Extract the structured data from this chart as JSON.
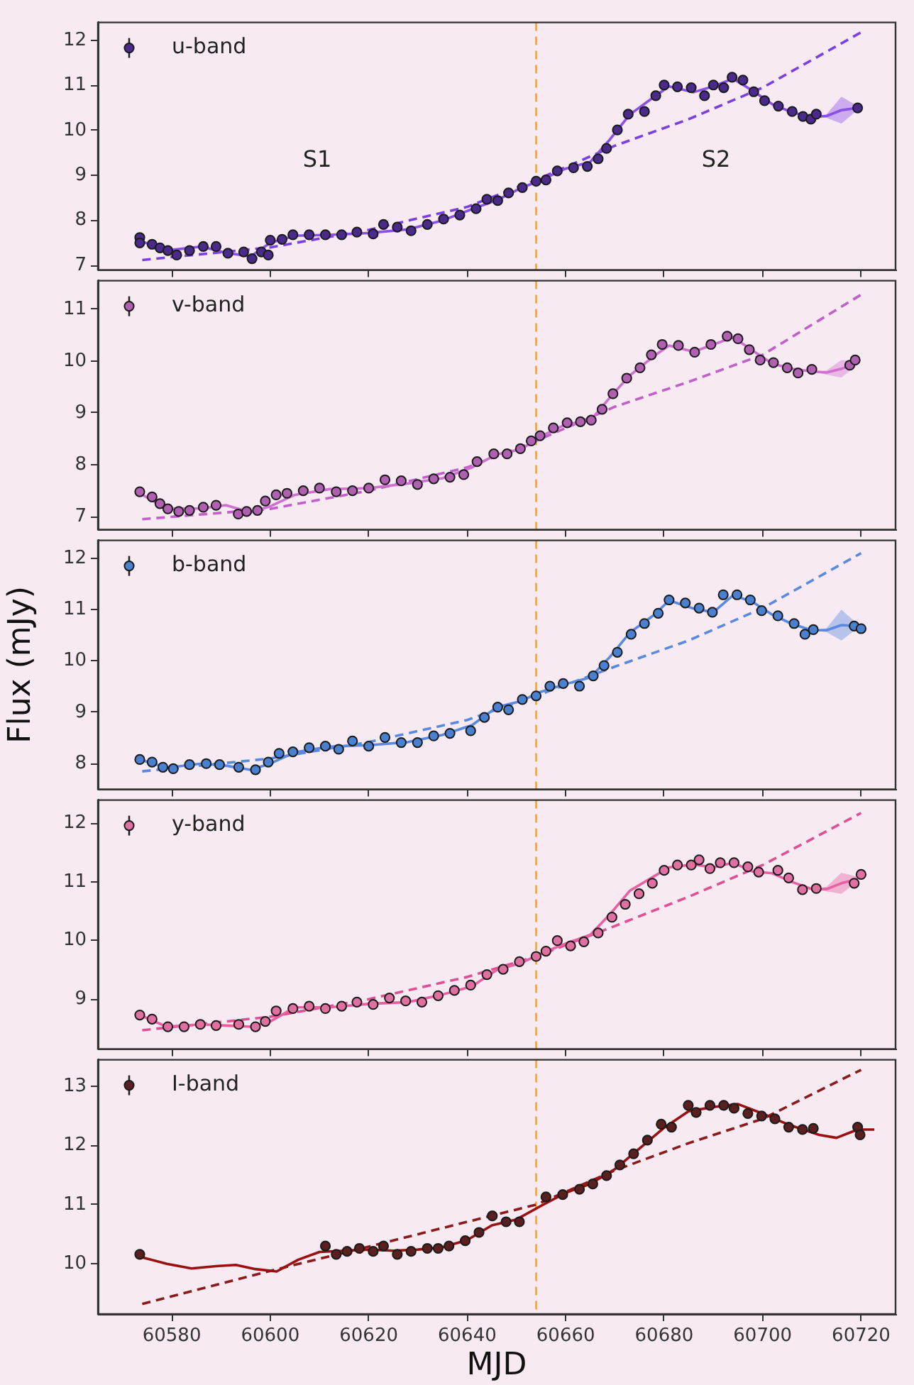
{
  "chart_data": [
    {
      "type": "scatter",
      "xlim": [
        60565,
        60727
      ],
      "xticks": [
        60580,
        60600,
        60620,
        60640,
        60660,
        60680,
        60700,
        60720
      ],
      "ylim": [
        6.9,
        12.4
      ],
      "yticks": [
        7,
        8,
        9,
        10,
        11,
        12
      ],
      "tick_labels": "y",
      "legend": "top left",
      "grid": false,
      "ref_lines": [
        {
          "axis": "x",
          "value": 60654,
          "color": "#f0a020",
          "line_style": "dashed"
        }
      ],
      "annotations": [
        "S1",
        "S2"
      ],
      "series": [
        {
          "name": "u-band",
          "marker": "circle",
          "color": "#4a2a8a",
          "x": [
            60573.5,
            60573.5,
            60576,
            60577.6,
            60579.2,
            60581,
            60583.6,
            60586.4,
            60589,
            60591.4,
            60594.6,
            60596.3,
            60598.2,
            60599.6,
            60600,
            60602.4,
            60604.6,
            60607.9,
            60611.2,
            60614.5,
            60617.6,
            60620.9,
            60623,
            60625.8,
            60628.6,
            60631.9,
            60635.2,
            60638.5,
            60641.8,
            60644,
            60646.2,
            60648.4,
            60651.2,
            60654,
            60656,
            60658.3,
            60661.6,
            60664.4,
            60666.6,
            60668.3,
            60670.5,
            60672.7,
            60676,
            60678.3,
            60680,
            60682.7,
            60685.5,
            60688.2,
            60690,
            60692.1,
            60693.8,
            60696,
            60698.2,
            60700.4,
            60703.2,
            60706,
            60708.2,
            60709.8,
            60710.9,
            60719.3
          ],
          "values": [
            7.62,
            7.5,
            7.47,
            7.39,
            7.33,
            7.23,
            7.33,
            7.42,
            7.42,
            7.27,
            7.3,
            7.15,
            7.3,
            7.23,
            7.56,
            7.58,
            7.68,
            7.68,
            7.68,
            7.68,
            7.74,
            7.7,
            7.91,
            7.85,
            7.77,
            7.91,
            8.03,
            8.12,
            8.26,
            8.47,
            8.44,
            8.61,
            8.73,
            8.87,
            8.9,
            9.1,
            9.17,
            9.2,
            9.37,
            9.6,
            10.01,
            10.36,
            10.42,
            10.77,
            11.01,
            10.97,
            10.95,
            10.77,
            11.01,
            10.95,
            11.18,
            11.12,
            10.86,
            10.66,
            10.54,
            10.42,
            10.31,
            10.25,
            10.36,
            10.5
          ]
        },
        {
          "type": "line",
          "color": "#8a50e8",
          "x": [
            60573.5,
            60579,
            60586,
            60591,
            60596,
            60600,
            60605,
            60612,
            60620,
            60628,
            60635,
            60641,
            60646,
            60651,
            60655,
            60660,
            60665,
            60669,
            60673,
            60678,
            60681,
            60686,
            60690,
            60694,
            60698,
            60702,
            60706,
            60710,
            60713,
            60716,
            60719.3
          ],
          "values": [
            7.55,
            7.33,
            7.42,
            7.28,
            7.2,
            7.5,
            7.66,
            7.68,
            7.72,
            7.8,
            8.0,
            8.25,
            8.45,
            8.72,
            8.9,
            9.15,
            9.3,
            9.8,
            10.35,
            10.75,
            10.98,
            10.85,
            10.98,
            11.15,
            10.88,
            10.58,
            10.4,
            10.3,
            10.32,
            10.45,
            10.5
          ],
          "lower": [
            7.55,
            7.33,
            7.42,
            7.28,
            7.2,
            7.5,
            7.66,
            7.68,
            7.72,
            7.8,
            8.0,
            8.25,
            8.45,
            8.72,
            8.9,
            9.15,
            9.3,
            9.8,
            10.35,
            10.75,
            10.98,
            10.85,
            10.98,
            11.15,
            10.88,
            10.58,
            10.4,
            10.3,
            10.28,
            10.15,
            10.46
          ],
          "upper": [
            7.55,
            7.33,
            7.42,
            7.28,
            7.2,
            7.5,
            7.66,
            7.68,
            7.72,
            7.8,
            8.0,
            8.25,
            8.45,
            8.72,
            8.9,
            9.15,
            9.3,
            9.8,
            10.35,
            10.75,
            10.98,
            10.85,
            10.98,
            11.15,
            10.88,
            10.58,
            10.4,
            10.3,
            10.36,
            10.75,
            10.54
          ]
        },
        {
          "type": "line",
          "color": "#7a40e0",
          "line_style": "dashed",
          "x": [
            60574,
            60600,
            60620,
            60640,
            60654,
            60670,
            60685,
            60700,
            60720
          ],
          "values": [
            7.12,
            7.4,
            7.79,
            8.3,
            8.9,
            9.66,
            10.25,
            10.95,
            12.18
          ]
        }
      ]
    },
    {
      "type": "scatter",
      "xlim": [
        60565,
        60727
      ],
      "xticks": [
        60580,
        60600,
        60620,
        60640,
        60660,
        60680,
        60700,
        60720
      ],
      "ylim": [
        6.75,
        11.55
      ],
      "yticks": [
        7,
        8,
        9,
        10,
        11
      ],
      "tick_labels": "y",
      "legend": "top left",
      "grid": false,
      "ref_lines": [
        {
          "axis": "x",
          "value": 60654,
          "color": "#f0a020",
          "line_style": "dashed"
        }
      ],
      "series": [
        {
          "name": "v-band",
          "marker": "circle",
          "color": "#b060b0",
          "x": [
            60573.5,
            60576,
            60577.6,
            60579.2,
            60581.4,
            60583.6,
            60586.4,
            60589,
            60593.5,
            60595.2,
            60597.4,
            60599,
            60601.2,
            60603.4,
            60606.7,
            60610,
            60613.4,
            60616.7,
            60620,
            60623.3,
            60626.6,
            60629.9,
            60633.2,
            60636.5,
            60639.3,
            60642,
            60645.4,
            60648.1,
            60650.8,
            60653,
            60654.8,
            60657.5,
            60660.3,
            60663,
            60665.2,
            60667.4,
            60669.6,
            60672.4,
            60675.1,
            60677.4,
            60679.6,
            60682.9,
            60686.2,
            60689.5,
            60692.8,
            60695,
            60697.3,
            60699.5,
            60702.2,
            60705,
            60707.2,
            60710,
            60717.7,
            60718.8
          ],
          "values": [
            7.48,
            7.38,
            7.25,
            7.15,
            7.1,
            7.12,
            7.18,
            7.22,
            7.05,
            7.1,
            7.12,
            7.3,
            7.42,
            7.45,
            7.5,
            7.55,
            7.48,
            7.5,
            7.55,
            7.71,
            7.69,
            7.62,
            7.73,
            7.76,
            7.81,
            8.06,
            8.21,
            8.21,
            8.31,
            8.46,
            8.56,
            8.71,
            8.81,
            8.83,
            8.86,
            9.07,
            9.37,
            9.67,
            9.87,
            10.12,
            10.32,
            10.3,
            10.17,
            10.32,
            10.48,
            10.43,
            10.22,
            10.02,
            9.97,
            9.87,
            9.77,
            9.84,
            9.92,
            10.02
          ]
        },
        {
          "type": "line",
          "color": "#d070d0",
          "x": [
            60573.5,
            60579,
            60586,
            60591,
            60596,
            60600,
            60605,
            60612,
            60620,
            60628,
            60635,
            60641,
            60646,
            60651,
            60655,
            60660,
            60665,
            60669,
            60673,
            60678,
            60681,
            60686,
            60690,
            60694,
            60698,
            60702,
            60706,
            60710,
            60713,
            60716,
            60719.3
          ],
          "values": [
            7.45,
            7.15,
            7.16,
            7.22,
            7.08,
            7.2,
            7.42,
            7.53,
            7.55,
            7.64,
            7.74,
            7.95,
            8.2,
            8.3,
            8.55,
            8.78,
            8.85,
            9.3,
            9.72,
            10.1,
            10.3,
            10.18,
            10.32,
            10.46,
            10.2,
            9.95,
            9.85,
            9.8,
            9.78,
            9.85,
            9.97
          ],
          "lower": [
            7.45,
            7.15,
            7.16,
            7.22,
            7.08,
            7.2,
            7.42,
            7.53,
            7.55,
            7.64,
            7.74,
            7.95,
            8.2,
            8.3,
            8.55,
            8.78,
            8.85,
            9.3,
            9.72,
            10.1,
            10.3,
            10.18,
            10.32,
            10.46,
            10.2,
            9.95,
            9.85,
            9.8,
            9.74,
            9.68,
            9.93
          ],
          "upper": [
            7.45,
            7.15,
            7.16,
            7.22,
            7.08,
            7.2,
            7.42,
            7.53,
            7.55,
            7.64,
            7.74,
            7.95,
            8.2,
            8.3,
            8.55,
            8.78,
            8.85,
            9.3,
            9.72,
            10.1,
            10.3,
            10.18,
            10.32,
            10.46,
            10.2,
            9.95,
            9.85,
            9.8,
            9.82,
            10.02,
            10.01
          ]
        },
        {
          "type": "line",
          "color": "#c060c8",
          "line_style": "dashed",
          "x": [
            60574,
            60600,
            60620,
            60640,
            60654,
            60670,
            60685,
            60700,
            60720
          ],
          "values": [
            6.95,
            7.15,
            7.5,
            7.95,
            8.46,
            9.12,
            9.6,
            10.12,
            11.28
          ]
        }
      ]
    },
    {
      "type": "scatter",
      "xlim": [
        60565,
        60727
      ],
      "xticks": [
        60580,
        60600,
        60620,
        60640,
        60660,
        60680,
        60700,
        60720
      ],
      "ylim": [
        7.5,
        12.35
      ],
      "yticks": [
        8,
        9,
        10,
        11,
        12
      ],
      "tick_labels": "y",
      "legend": "top left",
      "grid": false,
      "ylabel": "Flux (mJy)",
      "ref_lines": [
        {
          "axis": "x",
          "value": 60654,
          "color": "#f0a020",
          "line_style": "dashed"
        }
      ],
      "series": [
        {
          "name": "b-band",
          "marker": "circle",
          "color": "#4a80d0",
          "x": [
            60573.5,
            60576,
            60578.2,
            60580.3,
            60583.6,
            60587,
            60589.7,
            60593.6,
            60597,
            60599.6,
            60601.8,
            60604.6,
            60607.9,
            60611.2,
            60613.9,
            60616.7,
            60620,
            60623.3,
            60626.6,
            60629.9,
            60633.2,
            60636.5,
            60640.7,
            60643.5,
            60646.2,
            60648.4,
            60651.2,
            60654,
            60656.8,
            60659.5,
            60662.8,
            60665.6,
            60667.8,
            60670.5,
            60673.3,
            60676,
            60678.8,
            60681,
            60684.3,
            60687.1,
            60689.8,
            60692,
            60694.8,
            60697.5,
            60699.8,
            60703.1,
            60706.4,
            60708.6,
            60710.3,
            60718.6,
            60720
          ],
          "values": [
            8.08,
            8.03,
            7.93,
            7.9,
            7.98,
            8.0,
            7.98,
            7.93,
            7.88,
            8.03,
            8.2,
            8.23,
            8.31,
            8.34,
            8.28,
            8.44,
            8.34,
            8.51,
            8.41,
            8.41,
            8.54,
            8.59,
            8.64,
            8.9,
            9.1,
            9.05,
            9.25,
            9.32,
            9.51,
            9.56,
            9.51,
            9.71,
            9.91,
            10.17,
            10.52,
            10.73,
            10.93,
            11.19,
            11.13,
            11.03,
            10.95,
            11.29,
            11.29,
            11.19,
            10.98,
            10.88,
            10.73,
            10.52,
            10.61,
            10.68,
            10.63
          ]
        },
        {
          "type": "line",
          "color": "#5a8ae0",
          "x": [
            60573.5,
            60579,
            60586,
            60591,
            60596,
            60600,
            60605,
            60612,
            60620,
            60628,
            60635,
            60641,
            60646,
            60651,
            60655,
            60660,
            60665,
            60669,
            60673,
            60678,
            60681,
            60686,
            60690,
            60694,
            60698,
            60702,
            60706,
            60710,
            60713,
            60716,
            60719.3
          ],
          "values": [
            8.08,
            7.92,
            8.0,
            7.96,
            7.88,
            8.0,
            8.22,
            8.33,
            8.36,
            8.42,
            8.56,
            8.75,
            9.1,
            9.22,
            9.4,
            9.55,
            9.68,
            10.08,
            10.55,
            10.9,
            11.18,
            11.02,
            10.95,
            11.28,
            11.15,
            10.9,
            10.72,
            10.6,
            10.6,
            10.7,
            10.68
          ],
          "lower": [
            8.08,
            7.92,
            8.0,
            7.96,
            7.88,
            8.0,
            8.22,
            8.33,
            8.36,
            8.42,
            8.56,
            8.75,
            9.1,
            9.22,
            9.4,
            9.55,
            9.68,
            10.08,
            10.55,
            10.9,
            11.18,
            11.02,
            10.95,
            11.28,
            11.15,
            10.9,
            10.72,
            10.6,
            10.56,
            10.4,
            10.64
          ],
          "upper": [
            8.08,
            7.92,
            8.0,
            7.96,
            7.88,
            8.0,
            8.22,
            8.33,
            8.36,
            8.42,
            8.56,
            8.75,
            9.1,
            9.22,
            9.4,
            9.55,
            9.68,
            10.08,
            10.55,
            10.9,
            11.18,
            11.02,
            10.95,
            11.28,
            11.15,
            10.9,
            10.72,
            10.6,
            10.64,
            11.0,
            10.72
          ]
        },
        {
          "type": "line",
          "color": "#5a8ae0",
          "line_style": "dashed",
          "x": [
            60574,
            60600,
            60620,
            60640,
            60654,
            60670,
            60685,
            60700,
            60720
          ],
          "values": [
            7.85,
            8.1,
            8.42,
            8.85,
            9.32,
            9.89,
            10.4,
            11.03,
            12.1
          ]
        }
      ]
    },
    {
      "type": "scatter",
      "xlim": [
        60565,
        60727
      ],
      "xticks": [
        60580,
        60600,
        60620,
        60640,
        60660,
        60680,
        60700,
        60720
      ],
      "ylim": [
        8.15,
        12.4
      ],
      "yticks": [
        9,
        10,
        11,
        12
      ],
      "tick_labels": "y",
      "legend": "top left",
      "grid": false,
      "ref_lines": [
        {
          "axis": "x",
          "value": 60654,
          "color": "#f0a020",
          "line_style": "dashed"
        }
      ],
      "series": [
        {
          "name": "y-band",
          "marker": "circle",
          "color": "#e070a0",
          "x": [
            60573.5,
            60576,
            60579.2,
            60582.5,
            60585.8,
            60589,
            60593.6,
            60597,
            60599,
            60601.2,
            60604.6,
            60607.9,
            60611.2,
            60614.5,
            60617.6,
            60620.9,
            60624.2,
            60627.5,
            60630.8,
            60634.1,
            60637.4,
            60640.7,
            60644,
            60647.3,
            60650.6,
            60654,
            60656,
            60658.3,
            60661,
            60663.7,
            60666.6,
            60669.4,
            60672.1,
            60674.9,
            60677.6,
            60680,
            60682.7,
            60685.5,
            60687.1,
            60689.3,
            60691.4,
            60694.2,
            60697,
            60699.2,
            60703.1,
            60705.3,
            60708.1,
            60710.9,
            60718.6,
            60720
          ],
          "values": [
            8.73,
            8.66,
            8.53,
            8.53,
            8.57,
            8.55,
            8.57,
            8.53,
            8.62,
            8.8,
            8.84,
            8.88,
            8.84,
            8.88,
            8.95,
            8.91,
            9.02,
            8.97,
            8.95,
            9.06,
            9.15,
            9.24,
            9.42,
            9.51,
            9.64,
            9.73,
            9.82,
            10.0,
            9.91,
            9.98,
            10.13,
            10.4,
            10.62,
            10.8,
            10.98,
            11.2,
            11.29,
            11.29,
            11.38,
            11.23,
            11.33,
            11.33,
            11.26,
            11.17,
            11.2,
            11.07,
            10.87,
            10.89,
            10.98,
            11.13
          ]
        },
        {
          "type": "line",
          "color": "#e860a0",
          "x": [
            60573.5,
            60579,
            60586,
            60591,
            60596,
            60600,
            60605,
            60612,
            60620,
            60628,
            60635,
            60641,
            60646,
            60651,
            60655,
            60660,
            60665,
            60669,
            60673,
            60678,
            60681,
            60686,
            60690,
            60694,
            60698,
            60702,
            60706,
            60710,
            60713,
            60716,
            60719.3
          ],
          "values": [
            8.73,
            8.53,
            8.57,
            8.55,
            8.53,
            8.62,
            8.86,
            8.86,
            8.92,
            8.95,
            9.08,
            9.22,
            9.5,
            9.62,
            9.78,
            9.95,
            10.1,
            10.45,
            10.85,
            11.1,
            11.25,
            11.3,
            11.25,
            11.33,
            11.18,
            11.15,
            11.0,
            10.88,
            10.88,
            10.98,
            11.05
          ],
          "lower": [
            8.73,
            8.53,
            8.57,
            8.55,
            8.53,
            8.62,
            8.86,
            8.86,
            8.92,
            8.95,
            9.08,
            9.22,
            9.5,
            9.62,
            9.78,
            9.95,
            10.1,
            10.45,
            10.85,
            11.1,
            11.25,
            11.3,
            11.25,
            11.33,
            11.18,
            11.15,
            11.0,
            10.88,
            10.84,
            10.8,
            11.01
          ],
          "upper": [
            8.73,
            8.53,
            8.57,
            8.55,
            8.53,
            8.62,
            8.86,
            8.86,
            8.92,
            8.95,
            9.08,
            9.22,
            9.5,
            9.62,
            9.78,
            9.95,
            10.1,
            10.45,
            10.85,
            11.1,
            11.25,
            11.3,
            11.25,
            11.33,
            11.18,
            11.15,
            11.0,
            10.88,
            10.92,
            11.16,
            11.09
          ]
        },
        {
          "type": "line",
          "color": "#e05090",
          "line_style": "dashed",
          "x": [
            60574,
            60600,
            60620,
            60640,
            60654,
            60670,
            60685,
            60700,
            60720
          ],
          "values": [
            8.47,
            8.7,
            9.0,
            9.38,
            9.73,
            10.25,
            10.75,
            11.29,
            12.18
          ]
        }
      ]
    },
    {
      "type": "scatter",
      "xlim": [
        60565,
        60727
      ],
      "xticks": [
        60580,
        60600,
        60620,
        60640,
        60660,
        60680,
        60700,
        60720
      ],
      "ylim": [
        9.15,
        13.45
      ],
      "yticks": [
        10,
        11,
        12,
        13
      ],
      "legend": "top left",
      "grid": false,
      "xlabel": "MJD",
      "ref_lines": [
        {
          "axis": "x",
          "value": 60654,
          "color": "#f0a020",
          "line_style": "dashed"
        }
      ],
      "series": [
        {
          "name": "I-band",
          "marker": "circle",
          "color": "#5a2020",
          "x": [
            60573.5,
            60611.2,
            60613.4,
            60615.6,
            60618.1,
            60620.9,
            60623,
            60625.8,
            60628.6,
            60631.9,
            60634.1,
            60636.3,
            60639.6,
            60642.4,
            60645.1,
            60647.9,
            60650.6,
            60656,
            60659.4,
            60662.8,
            60665.5,
            60668.3,
            60671,
            60673.8,
            60676.6,
            60679.4,
            60681.5,
            60684.9,
            60686.5,
            60689.3,
            60692.1,
            60694.2,
            60697,
            60699.8,
            60702.5,
            60705.3,
            60708.1,
            60710.3,
            60719.3,
            60719.8
          ],
          "values": [
            10.16,
            10.3,
            10.16,
            10.21,
            10.26,
            10.21,
            10.3,
            10.16,
            10.21,
            10.26,
            10.26,
            10.3,
            10.39,
            10.53,
            10.81,
            10.71,
            10.71,
            11.13,
            11.17,
            11.26,
            11.35,
            11.49,
            11.67,
            11.86,
            12.09,
            12.36,
            12.31,
            12.68,
            12.56,
            12.68,
            12.68,
            12.63,
            12.54,
            12.5,
            12.45,
            12.31,
            12.27,
            12.29,
            12.31,
            12.18
          ]
        },
        {
          "type": "line",
          "color": "#9b1010",
          "x": [
            60573.5,
            60579,
            60584,
            60589,
            60593,
            60597,
            60601.3,
            60605.7,
            60610,
            60615,
            60620,
            60625,
            60630,
            60635,
            60640,
            60645,
            60650,
            60655,
            60660,
            60665,
            60670,
            60675,
            60680,
            60685,
            60690,
            60695,
            60700,
            60705,
            60711.5,
            60715,
            60719.3,
            60722.7
          ],
          "values": [
            10.12,
            10.0,
            9.92,
            9.96,
            9.98,
            9.91,
            9.87,
            10.07,
            10.2,
            10.22,
            10.24,
            10.22,
            10.24,
            10.28,
            10.4,
            10.65,
            10.75,
            10.98,
            11.2,
            11.35,
            11.6,
            11.95,
            12.3,
            12.58,
            12.65,
            12.7,
            12.54,
            12.36,
            12.18,
            12.13,
            12.27,
            12.27
          ]
        },
        {
          "type": "line",
          "color": "#8b1a1a",
          "line_style": "dashed",
          "x": [
            60574,
            60600,
            60620,
            60640,
            60654,
            60670,
            60685,
            60700,
            60720
          ],
          "values": [
            9.32,
            9.88,
            10.29,
            10.71,
            11.0,
            11.58,
            12.04,
            12.45,
            13.28
          ]
        }
      ]
    }
  ]
}
